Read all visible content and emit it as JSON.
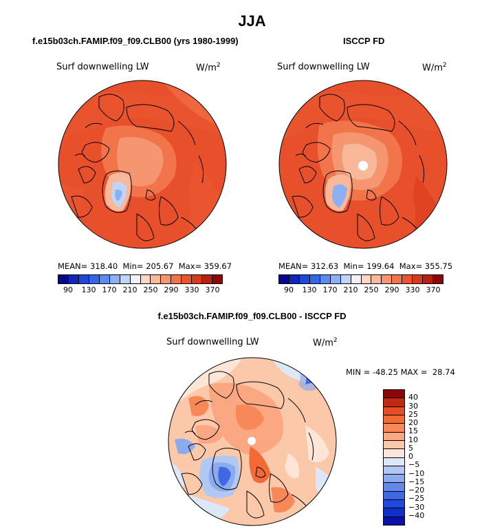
{
  "figure": {
    "title": "JJA",
    "panel_left_title": "f.e15b03ch.FAMIP.f09_f09.CLB00 (yrs 1980-1999)",
    "panel_right_title": "ISCCP FD",
    "panel_bottom_title": "f.e15b03ch.FAMIP.f09_f09.CLB00 - ISCCP FD"
  },
  "panels": {
    "left": {
      "variable": "Surf downwelling LW",
      "units": "W/m",
      "units_exp": "2",
      "stats": "MEAN= 318.40  Min= 205.67  Max= 359.67"
    },
    "right": {
      "variable": "Surf downwelling LW",
      "units": "W/m",
      "units_exp": "2",
      "stats": "MEAN= 312.63  Min= 199.64  Max= 355.75"
    },
    "bottom": {
      "variable": "Surf downwelling LW",
      "units": "W/m",
      "units_exp": "2",
      "stats": "MIN = -48.25 MAX =  28.74"
    }
  },
  "colorbar_abs": {
    "ticks": [
      "90",
      "130",
      "170",
      "210",
      "250",
      "290",
      "330",
      "370"
    ],
    "colors": [
      "#08088c",
      "#1028b8",
      "#1e48d8",
      "#3366e8",
      "#5a8cf0",
      "#8cb0f4",
      "#c0d4f8",
      "#f0f0f8",
      "#fcd8c4",
      "#fab89a",
      "#f69670",
      "#f2744a",
      "#ea5530",
      "#d83a1c",
      "#b82010",
      "#8c0806"
    ]
  },
  "colorbar_diff": {
    "ticks": [
      "40",
      "30",
      "25",
      "20",
      "15",
      "10",
      "5",
      "0",
      "−5",
      "−10",
      "−15",
      "−20",
      "−25",
      "−30",
      "−40"
    ],
    "colors": [
      "#8c0806",
      "#c02a14",
      "#e84c22",
      "#f46a34",
      "#f88858",
      "#fba882",
      "#fcc8aa",
      "#fde6d8",
      "#dce8f8",
      "#b0c8f2",
      "#8caaee",
      "#6488e8",
      "#4068e4",
      "#2448dc",
      "#1030c8",
      "#0a10a8"
    ]
  }
}
